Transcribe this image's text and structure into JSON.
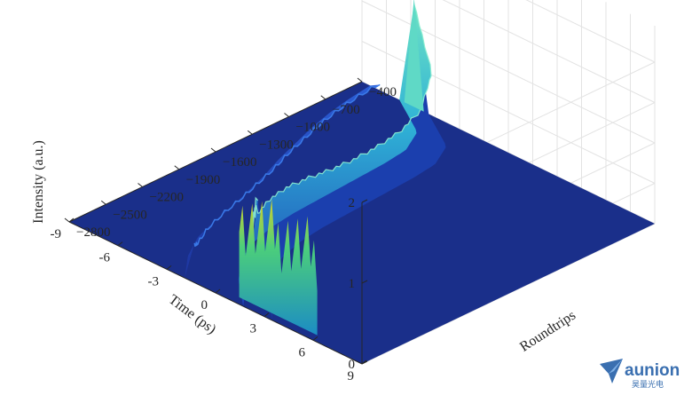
{
  "chart_data": {
    "type": "surface",
    "zlabel": "Intensity (a.u.)",
    "xlabel": "Time (ps)",
    "ylabel": "Roundtrips",
    "zticks": [
      "0",
      "1",
      "2"
    ],
    "xticks": [
      "9",
      "6",
      "3",
      "0",
      "-3",
      "-6",
      "-9"
    ],
    "yticks": [
      "-400",
      "-700",
      "-1000",
      "-1300",
      "-1600",
      "-1900",
      "-2200",
      "-2500",
      "-2800"
    ],
    "xlim": [
      -9,
      9
    ],
    "ylim": [
      -2800,
      -400
    ],
    "zlim": [
      0,
      2
    ],
    "grid": true,
    "colormap": "parula",
    "series": [
      {
        "role": "bright-trace",
        "roundtrips": [
          -2800,
          -2600,
          -2400,
          -2200,
          -2000,
          -1800,
          -1600,
          -1400,
          -1200,
          -1000,
          -800,
          -600,
          -400
        ],
        "time_ps": [
          2.6,
          0.8,
          -0.5,
          -1.2,
          -1.6,
          -1.8,
          -1.9,
          -2.0,
          -2.1,
          -2.2,
          -2.4,
          -3.2,
          -5.8
        ],
        "intensity": [
          1.4,
          0.75,
          0.6,
          0.58,
          0.55,
          0.5,
          0.45,
          0.42,
          0.42,
          0.45,
          0.55,
          0.8,
          1.25
        ]
      },
      {
        "role": "weak-trace",
        "roundtrips": [
          -2800,
          -2600,
          -2400,
          -2200,
          -2000,
          -1800,
          -1600,
          -1400,
          -1200,
          -1000,
          -800,
          -600,
          -400
        ],
        "time_ps": [
          -1.3,
          -2.6,
          -3.5,
          -4.0,
          -4.4,
          -4.9,
          -5.4,
          -6.0,
          -6.5,
          -7.0,
          -7.4,
          -7.7,
          -7.9
        ],
        "intensity": [
          0.45,
          0.2,
          0.15,
          0.15,
          0.15,
          0.14,
          0.13,
          0.12,
          0.11,
          0.1,
          0.09,
          0.08,
          0.07
        ]
      }
    ],
    "colors": {
      "floor": "#1a2f8a",
      "low": "#2147c4",
      "mid": "#1aa0c8",
      "high": "#3ccf8e",
      "peak": "#d8d22a",
      "grid": "#e3e3e3",
      "axis": "#262626"
    }
  },
  "logo": {
    "name": "aunion",
    "subtitle": "昊量光电",
    "color": "#3a6fb0"
  }
}
